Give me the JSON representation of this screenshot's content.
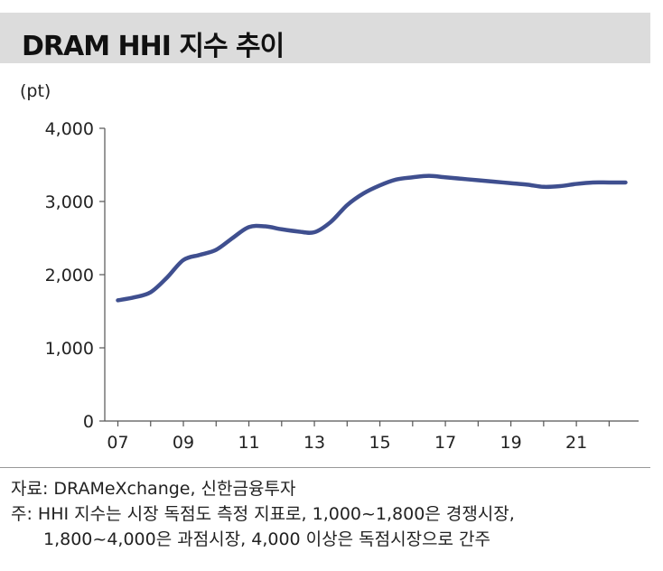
{
  "title": "DRAM HHI 지수 추이",
  "unit_label": "(pt)",
  "colors": {
    "line": "#3f4f8f",
    "title_bg": "#dcdcdc",
    "axis": "#555555"
  },
  "chart_data": {
    "type": "line",
    "title": "DRAM HHI 지수 추이",
    "ylabel": "(pt)",
    "ylim": [
      0,
      4000
    ],
    "y_ticks": [
      0,
      1000,
      2000,
      3000,
      4000
    ],
    "y_tick_labels": [
      "0",
      "1,000",
      "2,000",
      "3,000",
      "4,000"
    ],
    "xlim": [
      2006.6,
      2022.9
    ],
    "x_ticks": [
      2007,
      2009,
      2011,
      2013,
      2015,
      2017,
      2019,
      2021
    ],
    "x_tick_labels": [
      "07",
      "09",
      "11",
      "13",
      "15",
      "17",
      "19",
      "21"
    ],
    "grid": false,
    "legend": "none",
    "series": [
      {
        "x": [
          2007.0,
          2007.5,
          2008.0,
          2008.5,
          2009.0,
          2009.5,
          2010.0,
          2010.5,
          2011.0,
          2011.5,
          2012.0,
          2012.5,
          2013.0,
          2013.5,
          2014.0,
          2014.5,
          2015.0,
          2015.5,
          2016.0,
          2016.5,
          2017.0,
          2017.5,
          2018.0,
          2018.5,
          2019.0,
          2019.5,
          2020.0,
          2020.5,
          2021.0,
          2021.5,
          2022.0,
          2022.5
        ],
        "values": [
          1650,
          1690,
          1760,
          1960,
          2200,
          2270,
          2340,
          2500,
          2650,
          2660,
          2620,
          2590,
          2580,
          2720,
          2950,
          3110,
          3220,
          3300,
          3330,
          3350,
          3330,
          3310,
          3290,
          3270,
          3250,
          3230,
          3200,
          3210,
          3240,
          3260,
          3260,
          3260
        ]
      }
    ]
  },
  "footnotes": {
    "source": "자료: DRAMeXchange, 신한금융투자",
    "note_line1": "주: HHI 지수는 시장 독점도 측정 지표로, 1,000~1,800은 경쟁시장,",
    "note_line2": "1,800~4,000은 과점시장, 4,000 이상은 독점시장으로 간주"
  }
}
